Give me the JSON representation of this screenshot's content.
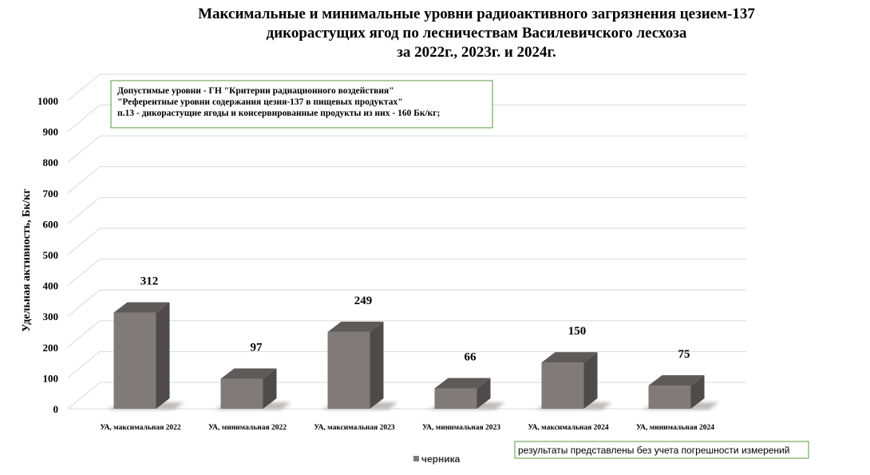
{
  "chart_data": {
    "type": "bar",
    "title_lines": [
      "Максимальные и минимальные уровни радиоактивного загрязнения цезием-137",
      "дикорастущих ягод по лесничествам Василевичского лесхоза",
      "за 2022г., 2023г. и 2024г."
    ],
    "ylabel": "Удельная активность, Бк/кг",
    "xlabel": "",
    "ylim": [
      0,
      1000
    ],
    "yticks": [
      "0",
      "100",
      "200",
      "300",
      "400",
      "500",
      "600",
      "700",
      "800",
      "900",
      "1000"
    ],
    "categories": [
      "УА, максимальная 2022",
      "УА, минимальная 2022",
      "УА, максимальная 2023",
      "УА, минимальная 2023",
      "УА, максимальная 2024",
      "УА, минимальная 2024"
    ],
    "series": [
      {
        "name": "черника",
        "values": [
          312,
          97,
          249,
          66,
          150,
          75
        ]
      }
    ],
    "data_labels": [
      "312",
      "97",
      "249",
      "66",
      "150",
      "75"
    ],
    "grid": true,
    "legend_position": "bottom",
    "bar_color": "#807b79",
    "annotation_lines": [
      "Допустимые уровни - ГН \"Критерии радиационного воздействия\"",
      "\"Референтные уровни содержания цезия-137 в пищевых продуктах\"",
      "п.13 - дикорастущие ягоды и консервированные продукты из них - 160 Бк/кг;"
    ],
    "footnote": "результаты представлены без учета погрешности измерений"
  }
}
